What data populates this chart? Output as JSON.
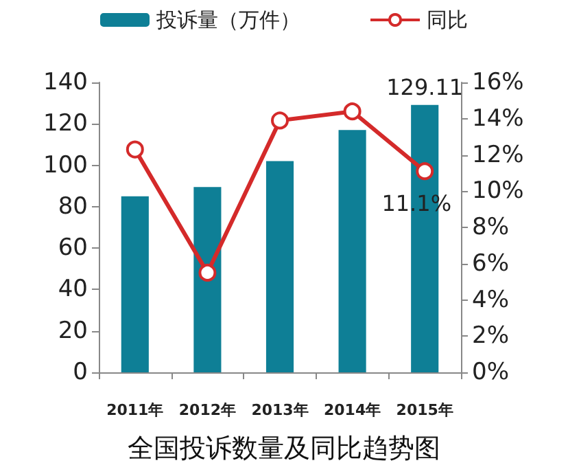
{
  "chart_data": {
    "type": "bar",
    "title": "全国投诉数量及同比趋势图",
    "categories": [
      "2011年",
      "2012年",
      "2013年",
      "2014年",
      "2015年"
    ],
    "series": [
      {
        "name": "投诉量（万件）",
        "color": "#0e7f96",
        "values": [
          85,
          89.5,
          102,
          117,
          129.11
        ],
        "value_labels": [
          null,
          null,
          null,
          null,
          "129.11"
        ]
      },
      {
        "name": "同比",
        "type": "line",
        "axis": "y2",
        "color": "#d42a2a",
        "values": [
          12.3,
          5.5,
          13.9,
          14.4,
          11.1
        ],
        "value_labels": [
          null,
          null,
          null,
          null,
          "11.1%"
        ]
      }
    ],
    "ylim": [
      0,
      140
    ],
    "yticks": [
      0,
      20,
      40,
      60,
      80,
      100,
      120,
      140
    ],
    "y2lim": [
      0,
      16
    ],
    "y2ticks": [
      {
        "value": 0,
        "label": "0%"
      },
      {
        "value": 2,
        "label": "2%"
      },
      {
        "value": 4,
        "label": "4%"
      },
      {
        "value": 6,
        "label": "6%"
      },
      {
        "value": 8,
        "label": "8%"
      },
      {
        "value": 10,
        "label": "10%"
      },
      {
        "value": 12,
        "label": "12%"
      },
      {
        "value": 14,
        "label": "14%"
      },
      {
        "value": 16,
        "label": "16%"
      }
    ],
    "grid": false,
    "legend": "top",
    "marker": "circle"
  }
}
